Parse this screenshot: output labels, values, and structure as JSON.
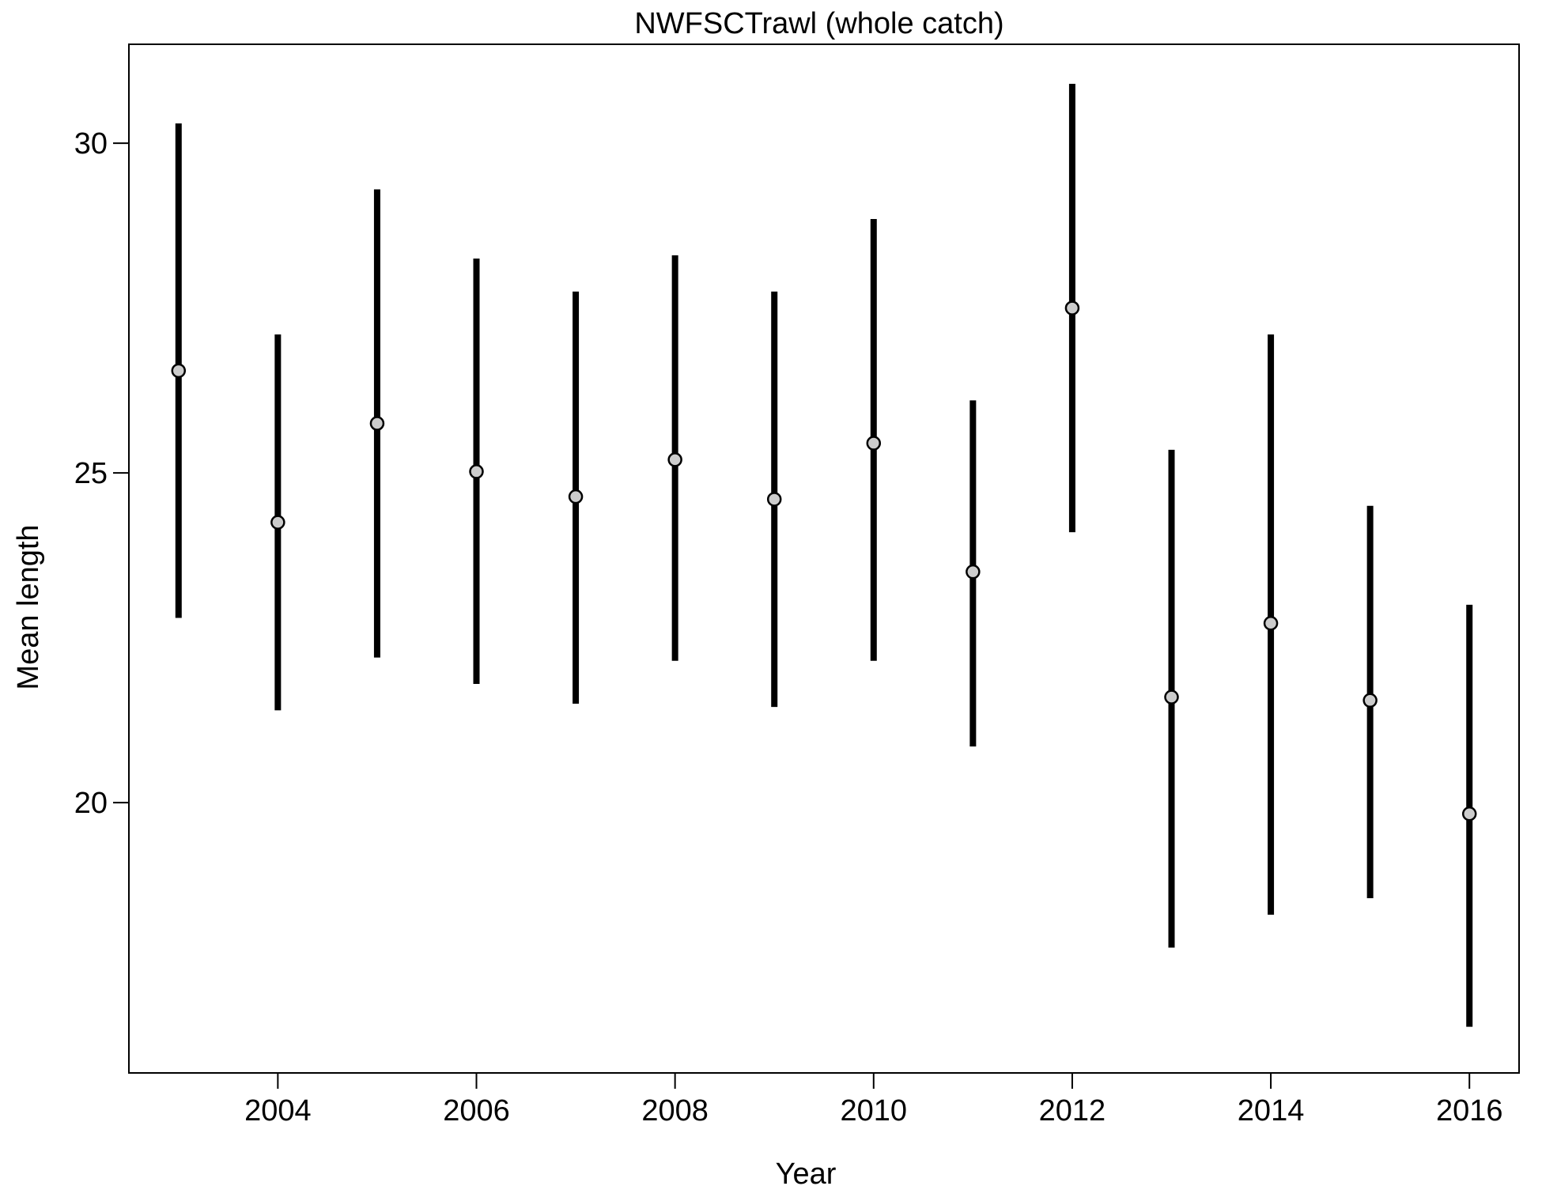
{
  "chart_data": {
    "type": "scatter",
    "title": "NWFSCTrawl (whole catch)",
    "xlabel": "Year",
    "ylabel": "Mean length",
    "x": [
      2003,
      2004,
      2005,
      2006,
      2007,
      2008,
      2009,
      2010,
      2011,
      2012,
      2013,
      2014,
      2015,
      2016
    ],
    "series": [
      {
        "mean": [
          26.55,
          24.25,
          25.75,
          25.02,
          24.64,
          25.2,
          24.6,
          25.45,
          23.5,
          27.5,
          21.6,
          22.72,
          21.55,
          19.83
        ],
        "lower": [
          22.8,
          21.4,
          22.2,
          21.8,
          21.5,
          22.15,
          21.45,
          22.15,
          20.85,
          24.1,
          17.8,
          18.3,
          18.55,
          16.6
        ],
        "upper": [
          30.3,
          27.1,
          29.3,
          28.25,
          27.75,
          28.3,
          27.75,
          28.85,
          26.1,
          30.9,
          25.35,
          27.1,
          24.5,
          23.0
        ]
      }
    ],
    "xlim": [
      2002.5,
      2016.5
    ],
    "ylim": [
      15.9,
      31.5
    ],
    "xticks": [
      2004,
      2006,
      2008,
      2010,
      2012,
      2014,
      2016
    ],
    "yticks": [
      20,
      25,
      30
    ],
    "grid": false,
    "point_color": "#cccccc",
    "point_stroke": "#000000",
    "bar_color": "#000000"
  }
}
